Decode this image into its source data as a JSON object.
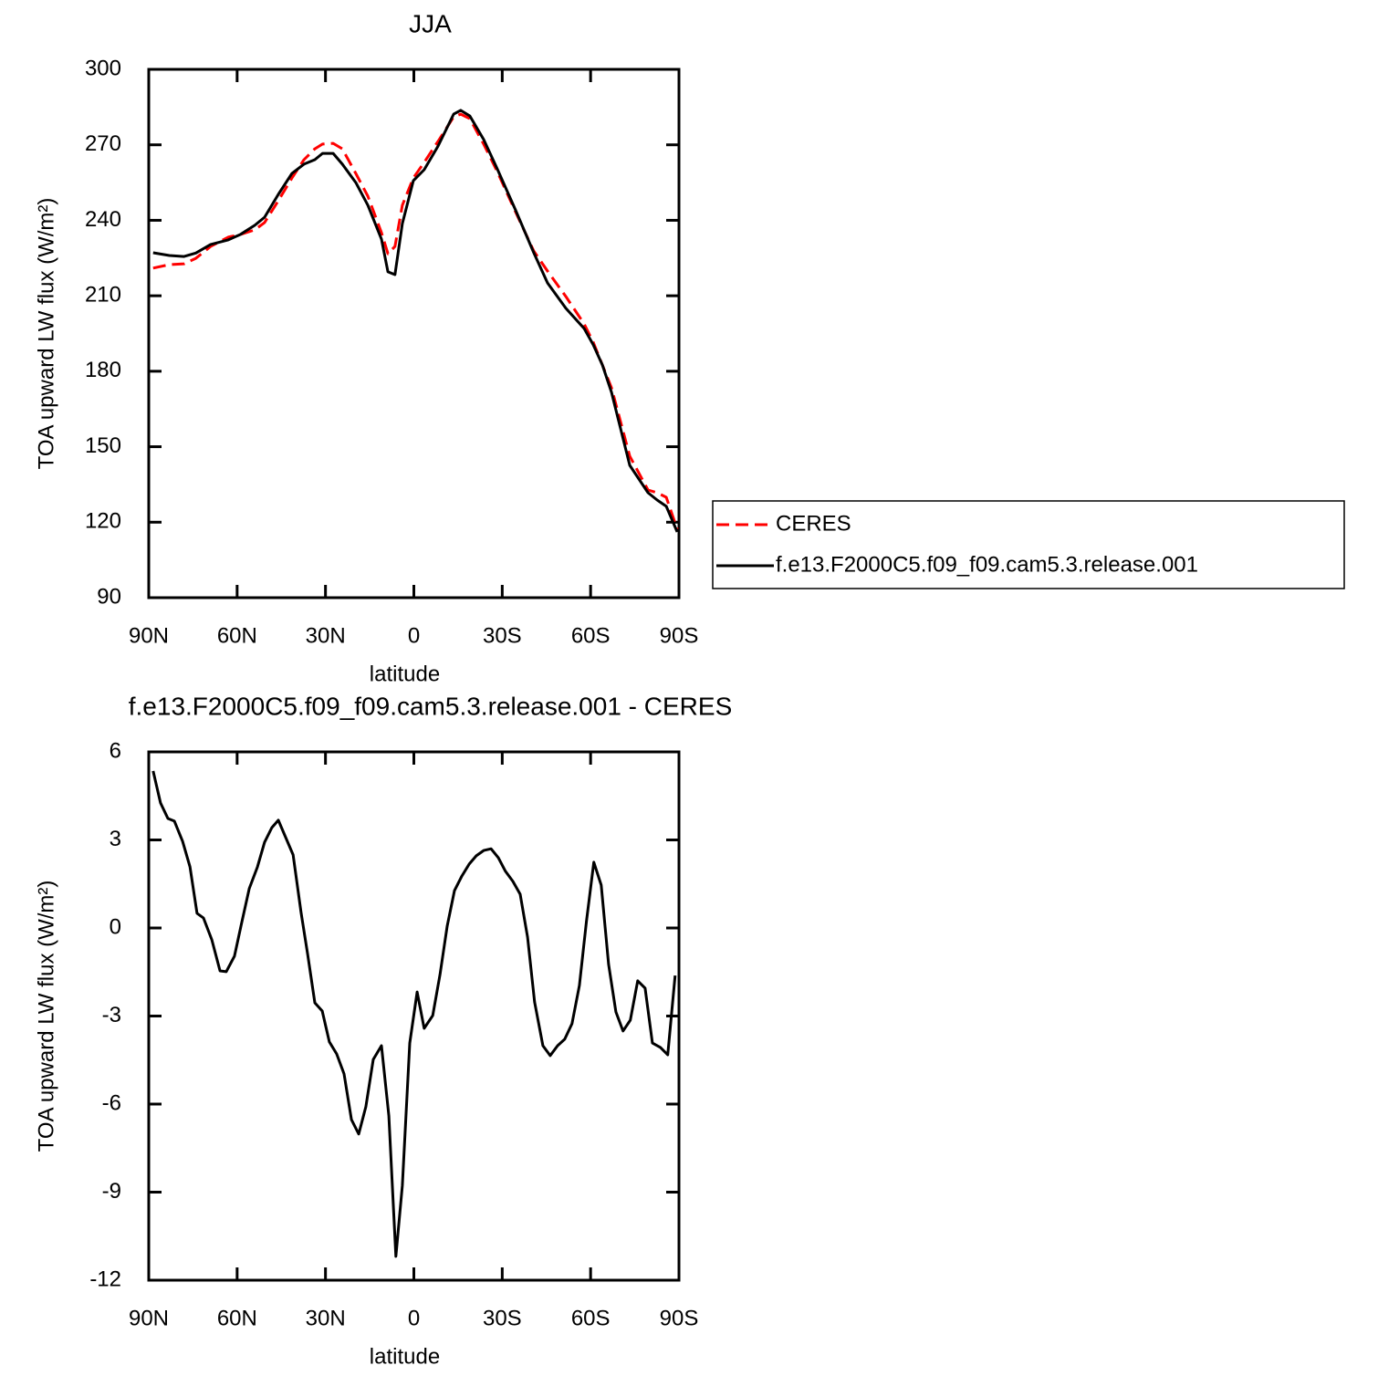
{
  "chart_data": [
    {
      "type": "line",
      "title": "JJA",
      "xlabel": "latitude",
      "ylabel": "TOA upward LW flux (W/m²)",
      "x": [
        88.5,
        83,
        78,
        74,
        69,
        63,
        59,
        54,
        50.7,
        46,
        41.4,
        37.3,
        33.6,
        31,
        27.4,
        24.3,
        19.7,
        15.6,
        11,
        8.8,
        6.4,
        3.9,
        0.2,
        -3.5,
        -8.2,
        -13.5,
        -15.9,
        -19,
        -23.7,
        -28.3,
        -34.5,
        -40.7,
        -45.4,
        -51.6,
        -57.8,
        -60.9,
        -64,
        -67.1,
        -73.3,
        -79.5,
        -82.6,
        -85.7,
        -89.4
      ],
      "series": [
        {
          "name": "CERES",
          "color": "#ff0000",
          "dashed": true,
          "values": [
            221,
            222.4,
            222.7,
            224.9,
            229.6,
            233.3,
            234.3,
            236.2,
            239.1,
            247.8,
            256.8,
            264.1,
            268.4,
            270.3,
            270.6,
            268.4,
            258.6,
            249.6,
            235.1,
            226.7,
            229.6,
            246,
            256.8,
            263,
            271.4,
            281.1,
            282.2,
            280.4,
            270.3,
            259.4,
            243.4,
            227.8,
            219.8,
            209.7,
            198.8,
            191.5,
            182.5,
            173.4,
            146.2,
            132.8,
            131.7,
            129.9,
            117.2
          ]
        },
        {
          "name": "f.e13.F2000C5.f09_f09.cam5.3.release.001",
          "color": "#000000",
          "dashed": false,
          "values": [
            227.1,
            226,
            225.6,
            227,
            230.4,
            232.2,
            234.3,
            238,
            241.2,
            250.3,
            258.6,
            262.3,
            264.1,
            266.6,
            266.6,
            262.3,
            255,
            246,
            232.5,
            219.5,
            218.4,
            238.7,
            255.7,
            260.1,
            269.5,
            282.2,
            283.7,
            281.5,
            272.1,
            260.5,
            244.1,
            227.1,
            215.1,
            205,
            197,
            190.5,
            182.5,
            171.6,
            142.6,
            131.7,
            128.8,
            126.3,
            116.1
          ]
        }
      ],
      "xlim": [
        90,
        -90
      ],
      "xticks": [
        {
          "value": 90,
          "label": "90N"
        },
        {
          "value": 60,
          "label": "60N"
        },
        {
          "value": 30,
          "label": "30N"
        },
        0,
        {
          "value": -30,
          "label": "30S"
        },
        {
          "value": -60,
          "label": "60S"
        },
        {
          "value": -90,
          "label": "90S"
        }
      ],
      "ylim": [
        90,
        300
      ],
      "yticks": [
        90,
        120,
        150,
        180,
        210,
        240,
        270,
        300
      ],
      "legend": "right"
    },
    {
      "type": "line",
      "title": "f.e13.F2000C5.f09_f09.cam5.3.release.001  -  CERES",
      "xlabel": "latitude",
      "ylabel": "TOA upward LW flux (W/m²)",
      "x": [
        88.5,
        86,
        83.5,
        81.3,
        78.5,
        76,
        73.6,
        71.4,
        68.6,
        65.8,
        63.7,
        60.9,
        58.7,
        55.9,
        53.1,
        50.7,
        48.2,
        46,
        43.5,
        41,
        38.3,
        36.1,
        33.6,
        31.1,
        28.7,
        26.2,
        23.7,
        21.2,
        18.7,
        16.3,
        13.8,
        11,
        8.5,
        6.1,
        3.9,
        1.4,
        -1.1,
        -3.5,
        -6.4,
        -8.9,
        -11.3,
        -13.8,
        -16.3,
        -18.8,
        -21.2,
        -23.7,
        -26.2,
        -28.7,
        -31.1,
        -33.6,
        -36.1,
        -38.6,
        -41,
        -43.8,
        -46.3,
        -48.8,
        -51.2,
        -53.7,
        -56.2,
        -58.6,
        -61.1,
        -63.6,
        -66.1,
        -68.6,
        -71,
        -73.5,
        -76,
        -78.5,
        -81,
        -83.7,
        -86.2,
        -88.7
      ],
      "color": "#000000",
      "values": [
        5.35,
        4.26,
        3.73,
        3.64,
        2.95,
        2.08,
        0.5,
        0.34,
        -0.4,
        -1.46,
        -1.49,
        -0.96,
        0.06,
        1.34,
        2.08,
        2.92,
        3.42,
        3.67,
        3.08,
        2.49,
        0.53,
        -0.87,
        -2.55,
        -2.83,
        -3.88,
        -4.29,
        -4.97,
        -6.53,
        -7.02,
        -6.09,
        -4.48,
        -4.01,
        -6.4,
        -11.19,
        -8.77,
        -3.92,
        -2.18,
        -3.42,
        -2.98,
        -1.58,
        0.06,
        1.27,
        1.77,
        2.18,
        2.46,
        2.64,
        2.7,
        2.39,
        1.93,
        1.59,
        1.15,
        -0.31,
        -2.52,
        -4.01,
        -4.35,
        -4.01,
        -3.79,
        -3.26,
        -1.96,
        0.22,
        2.24,
        1.46,
        -1.24,
        -2.86,
        -3.51,
        -3.14,
        -1.8,
        -2.05,
        -3.92,
        -4.07,
        -4.32,
        -1.62
      ],
      "xlim": [
        90,
        -90
      ],
      "xticks": [
        {
          "value": 90,
          "label": "90N"
        },
        {
          "value": 60,
          "label": "60N"
        },
        {
          "value": 30,
          "label": "30N"
        },
        0,
        {
          "value": -30,
          "label": "30S"
        },
        {
          "value": -60,
          "label": "60S"
        },
        {
          "value": -90,
          "label": "90S"
        }
      ],
      "ylim": [
        -12,
        6
      ],
      "yticks": [
        -12,
        -9,
        -6,
        -3,
        0,
        3,
        6
      ]
    }
  ]
}
